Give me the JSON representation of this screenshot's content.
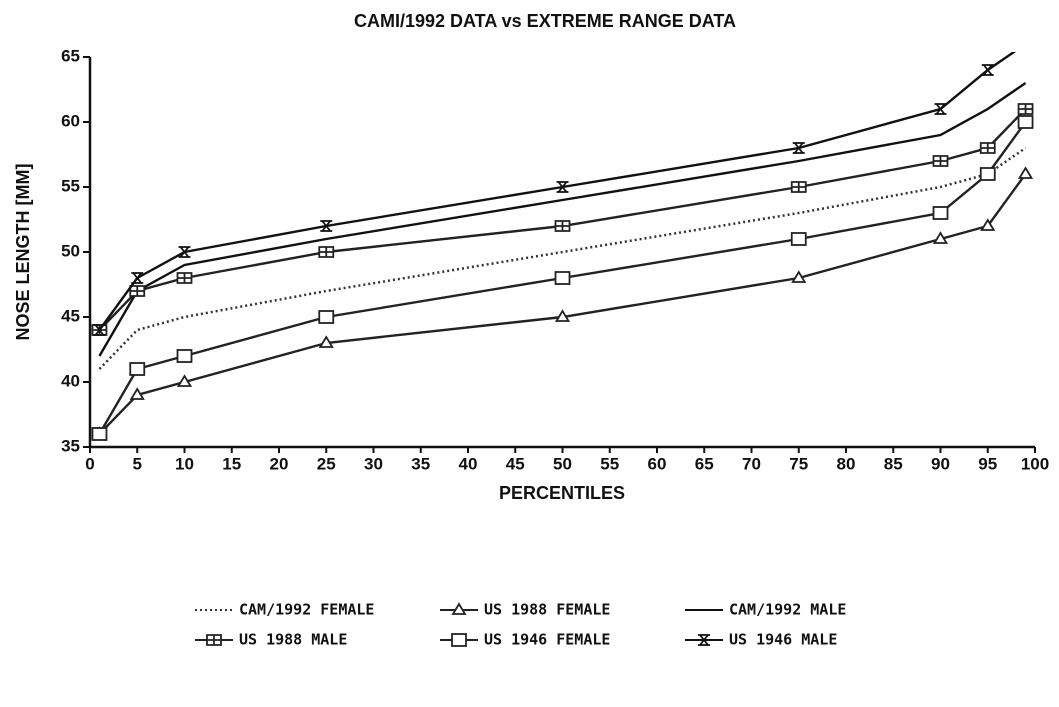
{
  "chart_data": {
    "type": "line",
    "title": "CAMI/1992 DATA vs EXTREME RANGE DATA",
    "x_label": "PERCENTILES",
    "y_label": "NOSE LENGTH [MM]",
    "x": [
      1,
      5,
      10,
      25,
      50,
      75,
      90,
      95,
      99
    ],
    "xlim": [
      0,
      100
    ],
    "xticks": [
      0,
      5,
      10,
      15,
      20,
      25,
      30,
      35,
      40,
      45,
      50,
      55,
      60,
      65,
      70,
      75,
      80,
      85,
      90,
      95,
      100
    ],
    "ylim": [
      35,
      65
    ],
    "yticks": [
      35,
      40,
      45,
      50,
      55,
      60,
      65
    ],
    "legend": "bottom",
    "series": [
      {
        "name": "CAM/1992 FEMALE",
        "color": "#333333",
        "dash": "dotted",
        "marker": "none",
        "values": [
          41,
          44,
          45,
          47,
          50,
          53,
          55,
          56,
          58
        ]
      },
      {
        "name": "US 1988 FEMALE",
        "color": "#222222",
        "dash": "solid",
        "marker": "triangle",
        "values": [
          36,
          39,
          40,
          43,
          45,
          48,
          51,
          52,
          56
        ]
      },
      {
        "name": "CAM/1992 MALE",
        "color": "#111111",
        "dash": "solid",
        "marker": "none",
        "values": [
          42,
          47,
          49,
          51,
          54,
          57,
          59,
          61,
          63
        ]
      },
      {
        "name": "US 1988 MALE",
        "color": "#222222",
        "dash": "solid",
        "marker": "square-cross",
        "values": [
          44,
          47,
          48,
          50,
          52,
          55,
          57,
          58,
          61
        ]
      },
      {
        "name": "US 1946 FEMALE",
        "color": "#222222",
        "dash": "solid",
        "marker": "square",
        "values": [
          36,
          41,
          42,
          45,
          48,
          51,
          53,
          56,
          60
        ]
      },
      {
        "name": "US 1946 MALE",
        "color": "#111111",
        "dash": "solid",
        "marker": "hourglass",
        "values": [
          44,
          48,
          50,
          52,
          55,
          58,
          61,
          64,
          66
        ]
      }
    ]
  }
}
